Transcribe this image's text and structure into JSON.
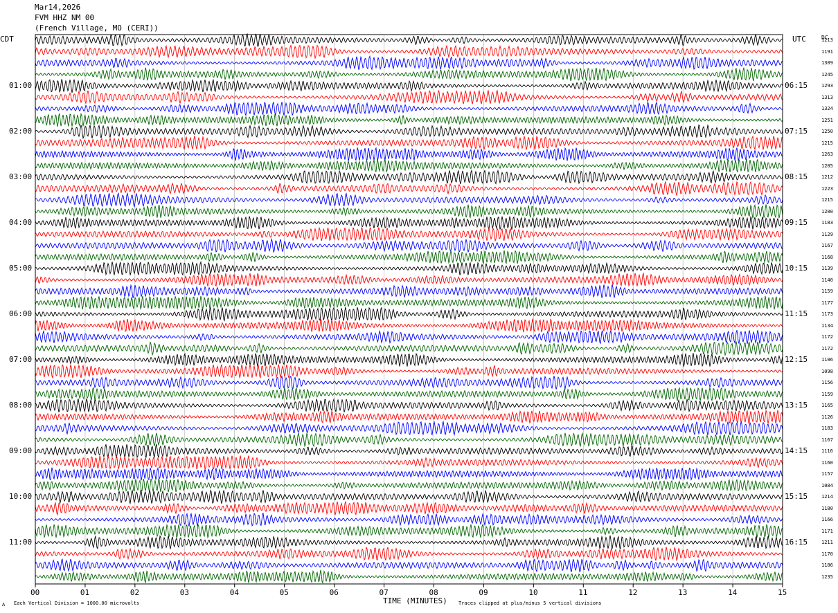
{
  "header": {
    "date": "Mar14,2026",
    "station": "FVM HHZ NM 00",
    "location": "(French Village, MO (CERI))"
  },
  "left_tz": "CDT",
  "right_tz": "UTC",
  "counts_header": "DC",
  "colors": {
    "trace_cycle": [
      "#000000",
      "#ff0000",
      "#0000ff",
      "#006400"
    ],
    "grid": "#aaaaaa"
  },
  "footer": {
    "scale": "Each Vertical Division = 1000.00 microvolts",
    "clip": "Traces clipped at plus/minus 5 vertical divisions",
    "corner": "A"
  },
  "chart_data": {
    "type": "helicorder",
    "xlabel": "TIME (MINUTES)",
    "x_ticks": [
      "00",
      "01",
      "02",
      "03",
      "04",
      "05",
      "06",
      "07",
      "08",
      "09",
      "10",
      "11",
      "12",
      "13",
      "14",
      "15"
    ],
    "xlim": [
      0,
      15
    ],
    "minutes_per_line": 15,
    "left_hour_labels": [
      "01:00",
      "02:00",
      "03:00",
      "04:00",
      "05:00",
      "06:00",
      "07:00",
      "08:00",
      "09:00",
      "10:00",
      "11:00"
    ],
    "right_hour_labels": [
      "06:15",
      "07:15",
      "08:15",
      "09:15",
      "10:15",
      "11:15",
      "12:15",
      "13:15",
      "14:15",
      "15:15",
      "16:15"
    ],
    "line_counts": [
      1213,
      1191,
      1309,
      1245,
      1293,
      1313,
      1324,
      1251,
      1250,
      1215,
      1263,
      1205,
      1212,
      1223,
      1215,
      1200,
      1183,
      1129,
      1167,
      1168,
      1139,
      1140,
      1159,
      1177,
      1173,
      1134,
      1172,
      1172,
      1106,
      1098,
      1156,
      1159,
      1165,
      1126,
      1183,
      1167,
      1116,
      1160,
      1157,
      1084,
      1214,
      1180,
      1166,
      1171,
      1211,
      1170,
      1186,
      1235
    ]
  }
}
